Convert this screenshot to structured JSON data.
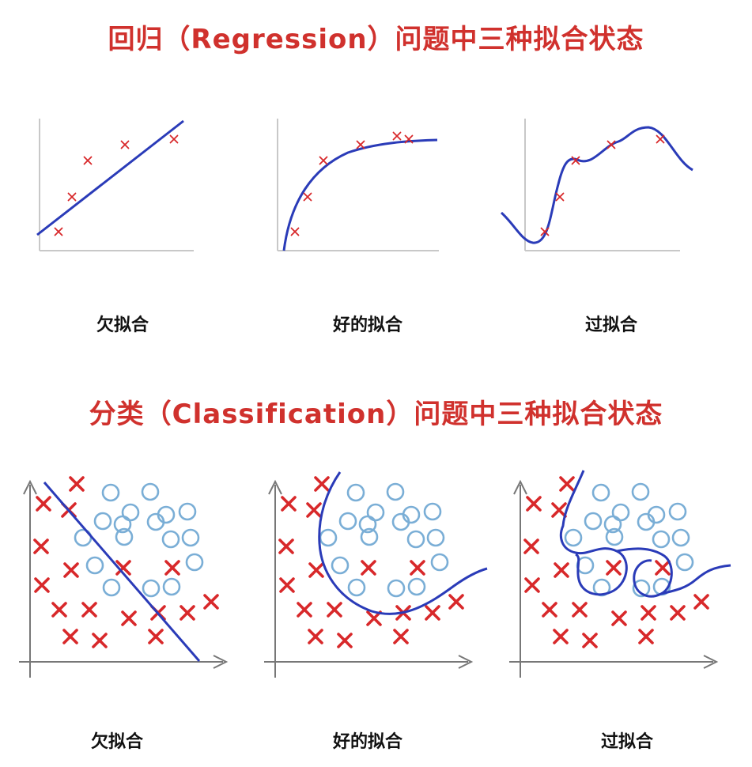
{
  "regression": {
    "title": "回归（Regression）问题中三种拟合状态",
    "panels": [
      {
        "caption": "欠拟合"
      },
      {
        "caption": "好的拟合"
      },
      {
        "caption": "过拟合"
      }
    ]
  },
  "classification": {
    "title": "分类（Classification）问题中三种拟合状态",
    "panels": [
      {
        "caption": "欠拟合"
      },
      {
        "caption": "好的拟合"
      },
      {
        "caption": "过拟合"
      }
    ]
  },
  "colors": {
    "curve": "#2a3bb8",
    "cross": "#d8282a",
    "circle": "#7aaed6",
    "axis": "#c8c8c8",
    "axis_dark": "#777777",
    "title": "#d0312d"
  }
}
